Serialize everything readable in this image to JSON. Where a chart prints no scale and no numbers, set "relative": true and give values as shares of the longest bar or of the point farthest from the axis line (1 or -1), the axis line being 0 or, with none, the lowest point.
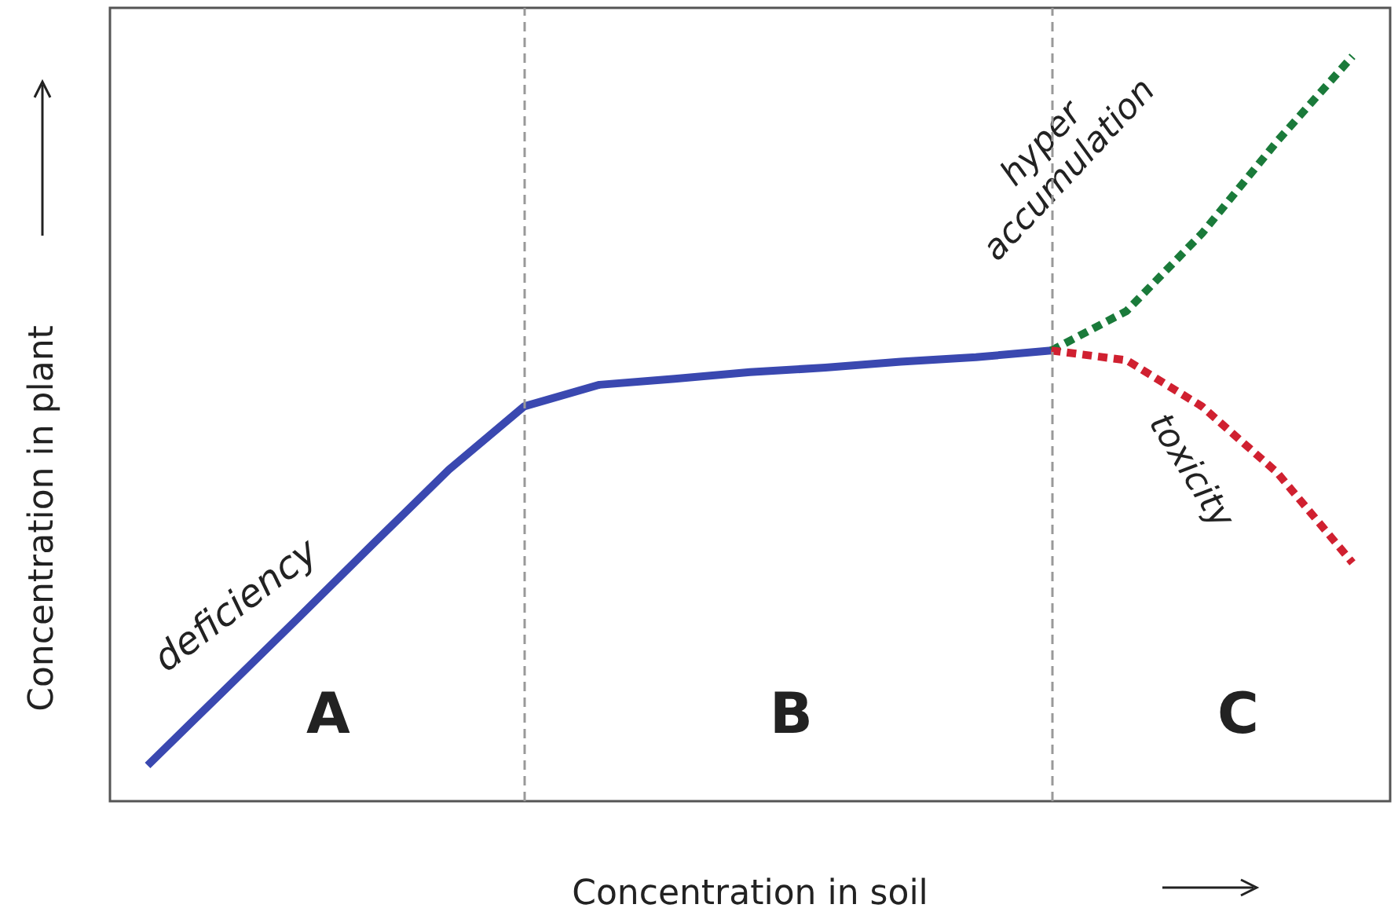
{
  "chart_data": {
    "type": "line",
    "relative": true,
    "xlabel": "Concentration in soil",
    "ylabel": "Concentration in plant",
    "categories": [
      null,
      null,
      null,
      null,
      null,
      null,
      null,
      null,
      null,
      null,
      null,
      null,
      null,
      null,
      null,
      null,
      null
    ],
    "series": [
      {
        "color": "#3a48b0",
        "line_style": "solid",
        "values": [
          0.048,
          0.147,
          0.246,
          0.346,
          0.445,
          0.53,
          0.559,
          0.567,
          0.576,
          0.582,
          0.59,
          0.596,
          0.605,
          null,
          null,
          null,
          null
        ]
      },
      {
        "color": "#1a7a3a",
        "line_style": "dashed",
        "values": [
          null,
          null,
          null,
          null,
          null,
          null,
          null,
          null,
          null,
          null,
          null,
          null,
          0.605,
          0.658,
          0.762,
          0.886,
          1
        ]
      },
      {
        "color": "#d02030",
        "line_style": "dashed",
        "values": [
          null,
          null,
          null,
          null,
          null,
          null,
          null,
          null,
          null,
          null,
          null,
          null,
          0.605,
          0.592,
          0.53,
          0.441,
          0.32
        ]
      }
    ],
    "annotations": [
      "deficiency",
      "hyper\naccumulation",
      "toxicity",
      "A",
      "B",
      "C"
    ],
    "grid": false,
    "marker": "none"
  }
}
